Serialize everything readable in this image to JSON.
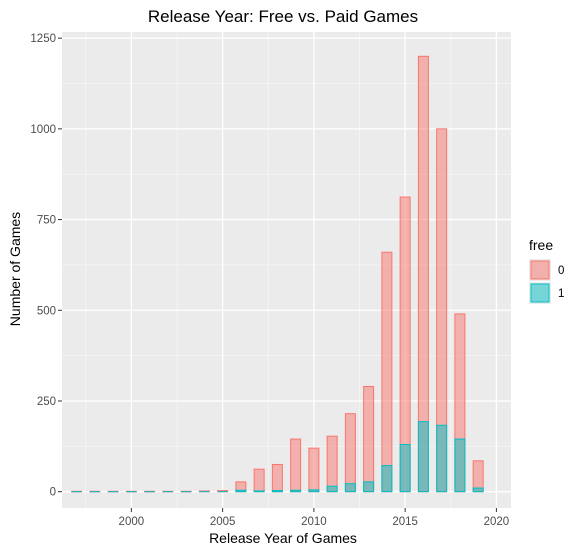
{
  "chart_data": {
    "type": "bar",
    "title": "Release Year: Free vs. Paid Games",
    "xlabel": "Release Year of Games",
    "ylabel": "Number of Games",
    "xlim": [
      1996.2,
      2020.8
    ],
    "ylim": [
      -45,
      1267
    ],
    "x_ticks": [
      2000,
      2005,
      2010,
      2015,
      2020
    ],
    "y_ticks": [
      0,
      250,
      500,
      750,
      1000,
      1250
    ],
    "grid": true,
    "legend": {
      "title": "free",
      "position": "right"
    },
    "x": [
      1997,
      1998,
      1999,
      2000,
      2001,
      2002,
      2003,
      2004,
      2005,
      2006,
      2007,
      2008,
      2009,
      2010,
      2011,
      2012,
      2013,
      2014,
      2015,
      2016,
      2017,
      2018,
      2019
    ],
    "series": [
      {
        "name": "0",
        "fill": "#F8766D",
        "values": [
          1,
          1,
          1,
          1,
          1,
          1,
          1,
          2,
          3,
          27,
          62,
          75,
          145,
          120,
          153,
          215,
          290,
          660,
          812,
          1200,
          1000,
          490,
          85
        ]
      },
      {
        "name": "1",
        "fill": "#00BFC4",
        "values": [
          0,
          0,
          0,
          0,
          0,
          0,
          0,
          0,
          0,
          4,
          2,
          3,
          4,
          5,
          15,
          22,
          27,
          72,
          130,
          193,
          183,
          145,
          10
        ]
      }
    ]
  },
  "colors": {
    "panel_background": "#EBEBEB",
    "grid_major": "#FFFFFF",
    "grid_minor": "#F5F5F5",
    "series_0_fill": "#F8766D",
    "series_1_fill": "#00BFC4"
  }
}
